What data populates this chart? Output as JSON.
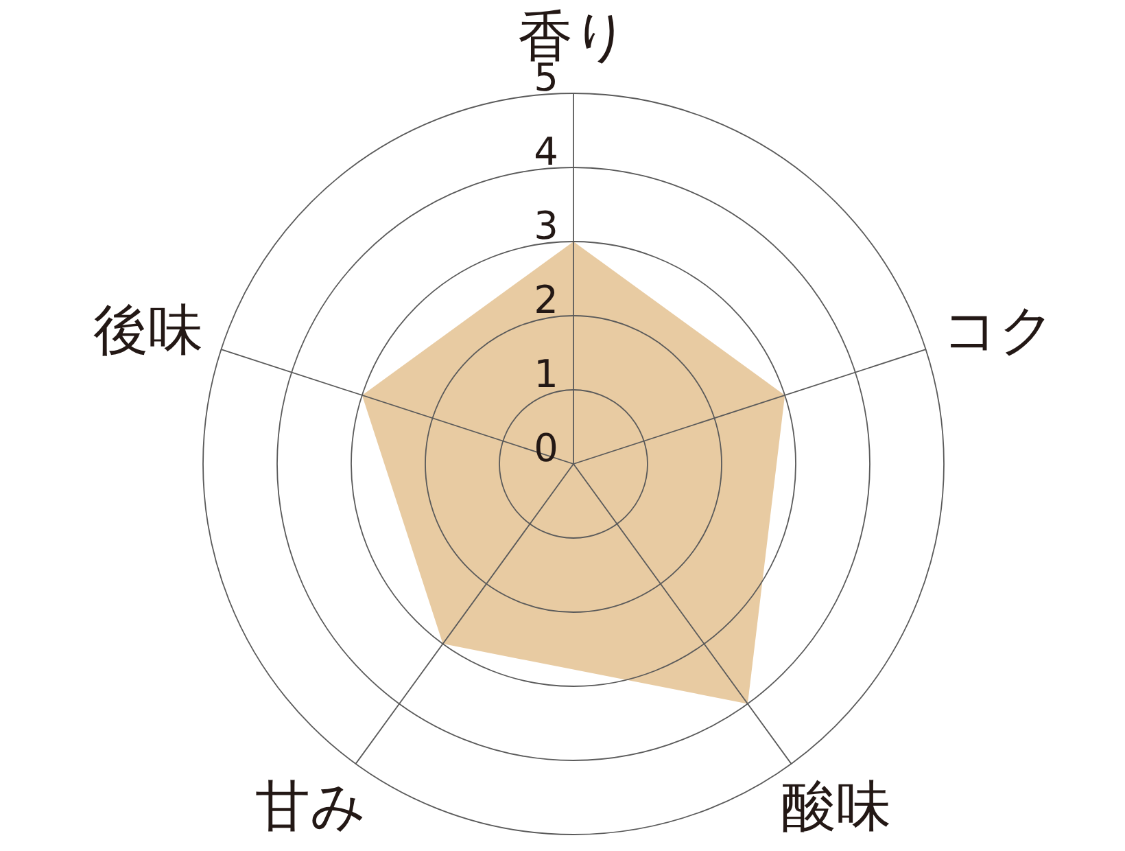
{
  "chart_data": {
    "type": "radar",
    "categories": [
      "香り",
      "コク",
      "酸味",
      "甘み",
      "後味"
    ],
    "series": [
      {
        "color": "#e8cba2",
        "values": [
          3,
          3,
          4,
          3,
          3
        ]
      }
    ],
    "ylim": [
      0,
      5
    ],
    "yticks": [
      0,
      1,
      2,
      3,
      4,
      5
    ],
    "grid": true
  }
}
